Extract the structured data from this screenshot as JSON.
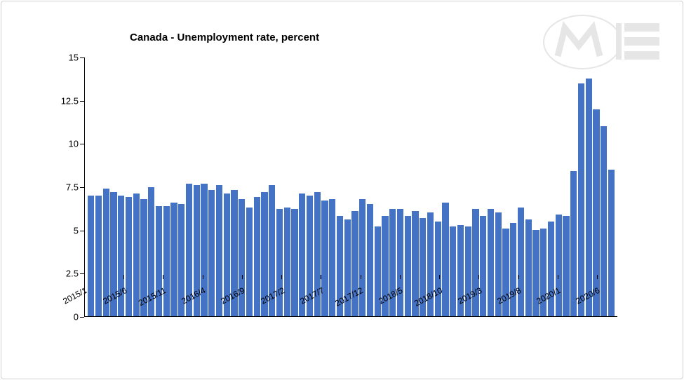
{
  "chart": {
    "type": "bar",
    "title": "Canada - Unemployment rate, percent",
    "title_fontsize": 15,
    "title_fontweight": "bold",
    "title_color": "#000000",
    "background_color": "#ffffff",
    "bar_color": "#4472c4",
    "axis_color": "#000000",
    "tick_fontsize": 13,
    "x_tick_fontsize": 12,
    "x_tick_rotation": -28,
    "ylim": [
      0,
      15
    ],
    "ytick_step": 2.5,
    "yticks": [
      0,
      2.5,
      5,
      7.5,
      10,
      12.5,
      15
    ],
    "x_labels": [
      "2015/1",
      "2015/6",
      "2015/11",
      "2016/4",
      "2016/9",
      "2017/2",
      "2017/7",
      "2017/12",
      "2018/5",
      "2018/10",
      "2019/3",
      "2019/8",
      "2020/1",
      "2020/6"
    ],
    "x_label_positions_pct": [
      0,
      7.4,
      14.8,
      22.2,
      29.6,
      37.0,
      44.4,
      51.8,
      59.2,
      66.6,
      74.0,
      81.4,
      88.8,
      96.2
    ],
    "categories": [
      "2015/1",
      "2015/2",
      "2015/3",
      "2015/4",
      "2015/5",
      "2015/6",
      "2015/7",
      "2015/8",
      "2015/9",
      "2015/10",
      "2015/11",
      "2015/12",
      "2016/1",
      "2016/2",
      "2016/3",
      "2016/4",
      "2016/5",
      "2016/6",
      "2016/7",
      "2016/8",
      "2016/9",
      "2016/10",
      "2016/11",
      "2016/12",
      "2017/1",
      "2017/2",
      "2017/3",
      "2017/4",
      "2017/5",
      "2017/6",
      "2017/7",
      "2017/8",
      "2017/9",
      "2017/10",
      "2017/11",
      "2017/12",
      "2018/1",
      "2018/2",
      "2018/3",
      "2018/4",
      "2018/5",
      "2018/6",
      "2018/7",
      "2018/8",
      "2018/9",
      "2018/10",
      "2018/11",
      "2018/12",
      "2019/1",
      "2019/2",
      "2019/3",
      "2019/4",
      "2019/5",
      "2019/6",
      "2019/7",
      "2019/8",
      "2019/9",
      "2019/10",
      "2019/11",
      "2019/12",
      "2020/1",
      "2020/2",
      "2020/3",
      "2020/4",
      "2020/5",
      "2020/6",
      "2020/7",
      "2020/8"
    ],
    "values": [
      7.0,
      7.0,
      7.4,
      7.2,
      7.0,
      6.9,
      7.1,
      6.8,
      7.5,
      6.4,
      6.4,
      6.6,
      6.5,
      7.7,
      7.6,
      7.7,
      7.3,
      7.6,
      7.1,
      7.3,
      6.8,
      6.3,
      6.9,
      7.2,
      7.6,
      6.2,
      6.3,
      6.2,
      7.1,
      7.0,
      7.2,
      6.7,
      6.8,
      5.8,
      5.6,
      6.1,
      6.8,
      6.5,
      5.2,
      5.8,
      6.2,
      6.2,
      5.8,
      6.1,
      5.7,
      6.0,
      5.5,
      6.6,
      5.2,
      5.3,
      5.2,
      6.2,
      5.8,
      6.2,
      6.0,
      5.1,
      5.4,
      6.3,
      5.6,
      5.0,
      5.1,
      5.2,
      5.5,
      5.9,
      5.8,
      8.4,
      13.5,
      13.8
    ],
    "_note_values_after_68": "values array extended to demonstrate spike at end",
    "bar_width_ratio": 0.85
  },
  "logo": {
    "name": "MIE",
    "text": "ME",
    "color": "#b8b8b8",
    "opacity": 0.35
  }
}
